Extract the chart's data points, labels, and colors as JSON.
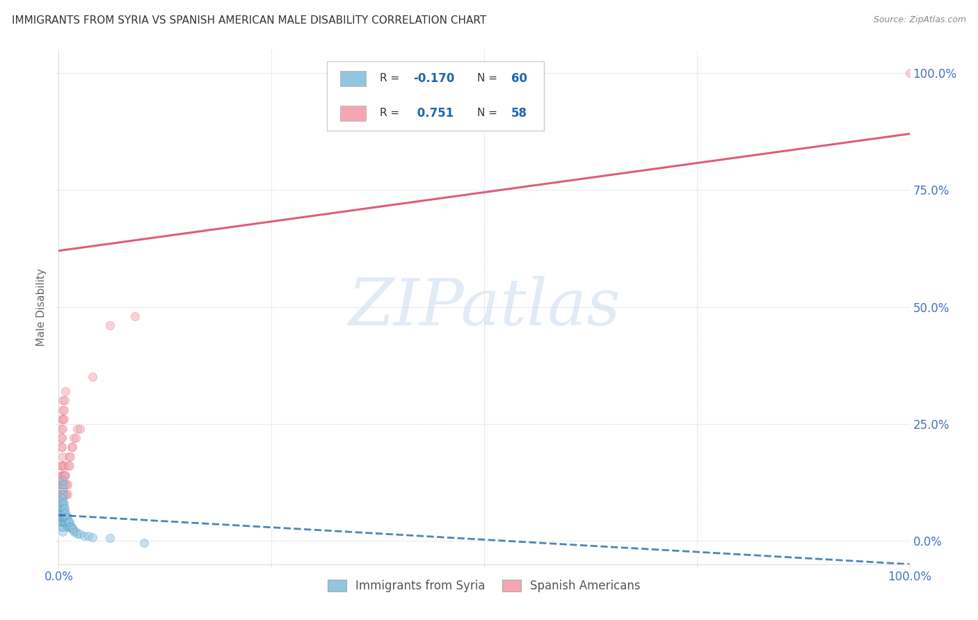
{
  "title": "IMMIGRANTS FROM SYRIA VS SPANISH AMERICAN MALE DISABILITY CORRELATION CHART",
  "source": "Source: ZipAtlas.com",
  "ylabel": "Male Disability",
  "xlim": [
    0,
    1.0
  ],
  "ylim": [
    -0.05,
    1.05
  ],
  "watermark": "ZIPatlas",
  "blue_color": "#92c5de",
  "blue_edge_color": "#4393c3",
  "pink_color": "#f4a7b2",
  "pink_edge_color": "#e05c7a",
  "blue_line_color": "#2166ac",
  "pink_line_color": "#e05c7a",
  "blue_scatter_x": [
    0.002,
    0.002,
    0.003,
    0.003,
    0.003,
    0.003,
    0.004,
    0.004,
    0.004,
    0.004,
    0.004,
    0.004,
    0.004,
    0.005,
    0.005,
    0.005,
    0.005,
    0.005,
    0.005,
    0.005,
    0.005,
    0.005,
    0.005,
    0.005,
    0.005,
    0.006,
    0.006,
    0.006,
    0.006,
    0.006,
    0.007,
    0.007,
    0.007,
    0.007,
    0.008,
    0.008,
    0.008,
    0.009,
    0.009,
    0.01,
    0.01,
    0.01,
    0.011,
    0.012,
    0.012,
    0.013,
    0.013,
    0.014,
    0.015,
    0.016,
    0.017,
    0.018,
    0.02,
    0.022,
    0.025,
    0.03,
    0.035,
    0.04,
    0.06,
    0.1
  ],
  "blue_scatter_y": [
    0.05,
    0.06,
    0.04,
    0.05,
    0.06,
    0.07,
    0.03,
    0.04,
    0.05,
    0.06,
    0.07,
    0.08,
    0.09,
    0.02,
    0.03,
    0.04,
    0.05,
    0.06,
    0.07,
    0.08,
    0.09,
    0.1,
    0.11,
    0.12,
    0.13,
    0.04,
    0.05,
    0.06,
    0.07,
    0.08,
    0.04,
    0.05,
    0.06,
    0.07,
    0.04,
    0.05,
    0.06,
    0.04,
    0.05,
    0.03,
    0.04,
    0.05,
    0.04,
    0.03,
    0.04,
    0.03,
    0.04,
    0.03,
    0.03,
    0.025,
    0.025,
    0.02,
    0.02,
    0.015,
    0.015,
    0.01,
    0.01,
    0.008,
    0.006,
    -0.005
  ],
  "pink_scatter_x": [
    0.002,
    0.002,
    0.002,
    0.003,
    0.003,
    0.003,
    0.003,
    0.004,
    0.004,
    0.004,
    0.004,
    0.005,
    0.005,
    0.005,
    0.005,
    0.005,
    0.005,
    0.006,
    0.006,
    0.006,
    0.007,
    0.007,
    0.007,
    0.008,
    0.008,
    0.008,
    0.009,
    0.009,
    0.01,
    0.01,
    0.011,
    0.012,
    0.013,
    0.014,
    0.015,
    0.016,
    0.018,
    0.02,
    0.022,
    0.025,
    0.003,
    0.003,
    0.003,
    0.004,
    0.004,
    0.004,
    0.005,
    0.005,
    0.005,
    0.005,
    0.006,
    0.006,
    0.007,
    0.008,
    0.04,
    0.06,
    0.09,
    1.0
  ],
  "pink_scatter_y": [
    0.08,
    0.1,
    0.12,
    0.1,
    0.12,
    0.14,
    0.16,
    0.1,
    0.12,
    0.14,
    0.16,
    0.08,
    0.1,
    0.12,
    0.14,
    0.16,
    0.18,
    0.1,
    0.12,
    0.14,
    0.12,
    0.14,
    0.16,
    0.1,
    0.12,
    0.14,
    0.1,
    0.12,
    0.1,
    0.12,
    0.16,
    0.18,
    0.16,
    0.18,
    0.2,
    0.2,
    0.22,
    0.22,
    0.24,
    0.24,
    0.2,
    0.22,
    0.24,
    0.2,
    0.22,
    0.26,
    0.24,
    0.26,
    0.28,
    0.3,
    0.26,
    0.28,
    0.3,
    0.32,
    0.35,
    0.46,
    0.48,
    1.0
  ],
  "blue_line_x": [
    0.0,
    1.0
  ],
  "blue_line_y": [
    0.055,
    -0.05
  ],
  "pink_line_x": [
    0.0,
    1.0
  ],
  "pink_line_y": [
    0.62,
    0.87
  ],
  "grid_color": "#cccccc",
  "background_color": "#ffffff",
  "title_color": "#333333",
  "axis_color": "#4472c4",
  "dot_size": 75,
  "dot_alpha": 0.5
}
